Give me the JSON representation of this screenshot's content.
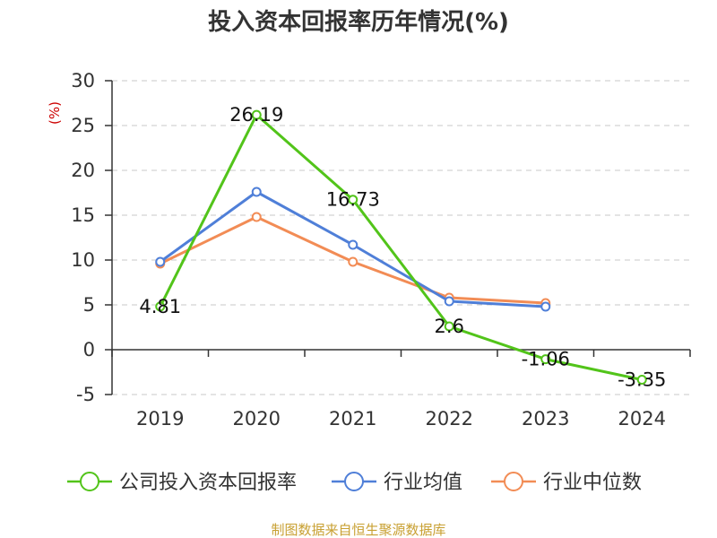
{
  "chart_data": {
    "type": "line",
    "title": "投入资本回报率历年情况(%)",
    "ylabel": "(%)",
    "xlabel": "",
    "categories": [
      "2019",
      "2020",
      "2021",
      "2022",
      "2023",
      "2024"
    ],
    "ylim": [
      -5,
      30
    ],
    "yticks": [
      30,
      25,
      20,
      15,
      10,
      5,
      0,
      -5
    ],
    "grid": true,
    "legend_position": "bottom",
    "series": [
      {
        "name": "公司投入资本回报率",
        "color": "#52c41a",
        "values": [
          4.81,
          26.19,
          16.73,
          2.6,
          -1.06,
          -3.35
        ],
        "labels": [
          "4.81",
          "26.19",
          "16.73",
          "2.6",
          "-1.06",
          "-3.35"
        ]
      },
      {
        "name": "行业均值",
        "color": "#4f7fd8",
        "values": [
          9.8,
          17.6,
          11.7,
          5.4,
          4.8,
          null
        ]
      },
      {
        "name": "行业中位数",
        "color": "#f28c55",
        "values": [
          9.6,
          14.8,
          9.8,
          5.8,
          5.2,
          null
        ]
      }
    ],
    "source": "制图数据来自恒生聚源数据库"
  }
}
